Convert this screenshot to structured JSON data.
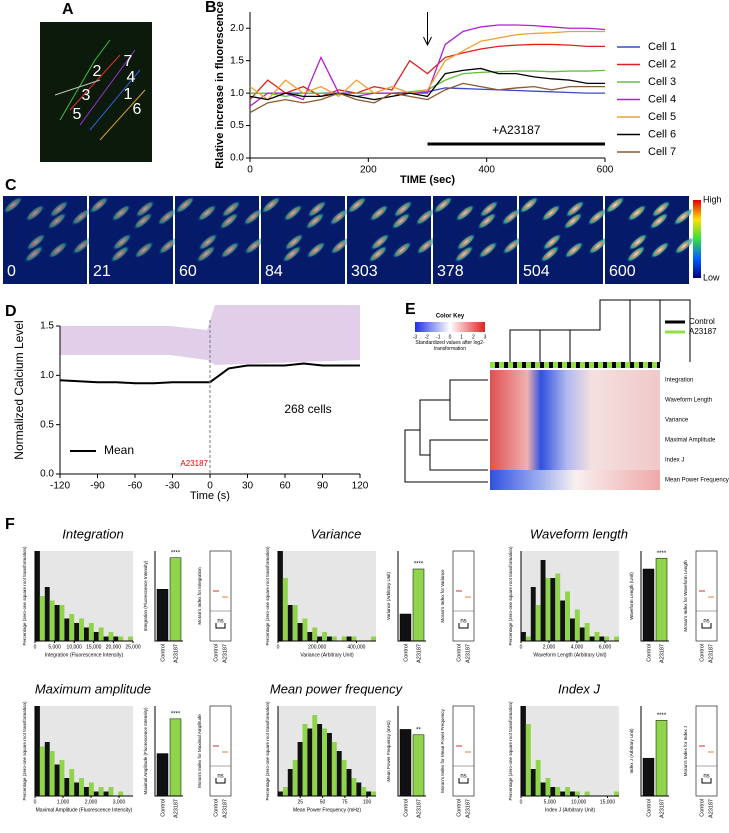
{
  "panel_labels": [
    "A",
    "B",
    "C",
    "D",
    "E",
    "F"
  ],
  "panel_a": {
    "cell_labels": [
      "2",
      "7",
      "3",
      "4",
      "1",
      "5",
      "6"
    ]
  },
  "panel_b": {
    "type": "line",
    "ylabel": "Rlative increase in fluorescence",
    "xlabel": "TIME (sec)",
    "x": [
      0,
      30,
      60,
      90,
      120,
      150,
      180,
      210,
      240,
      270,
      300,
      330,
      360,
      390,
      420,
      450,
      480,
      510,
      540,
      570,
      600
    ],
    "series": [
      {
        "name": "Cell 1",
        "color": "#3b4bc8",
        "values": [
          1.0,
          1.0,
          1.0,
          1.0,
          1.0,
          1.0,
          1.0,
          1.0,
          1.0,
          1.0,
          1.02,
          1.08,
          1.07,
          1.06,
          1.05,
          1.04,
          1.03,
          1.02,
          1.01,
          1.0,
          1.0
        ]
      },
      {
        "name": "Cell 2",
        "color": "#e02020",
        "values": [
          0.9,
          1.2,
          1.0,
          1.1,
          0.95,
          1.05,
          1.0,
          1.1,
          1.05,
          1.5,
          1.3,
          1.55,
          1.62,
          1.68,
          1.72,
          1.74,
          1.75,
          1.75,
          1.74,
          1.72,
          1.72
        ]
      },
      {
        "name": "Cell 3",
        "color": "#60c040",
        "values": [
          1.0,
          1.0,
          0.95,
          1.0,
          1.0,
          0.98,
          1.0,
          1.0,
          1.0,
          1.02,
          1.05,
          1.2,
          1.3,
          1.32,
          1.33,
          1.34,
          1.34,
          1.33,
          1.34,
          1.34,
          1.35
        ]
      },
      {
        "name": "Cell 4",
        "color": "#b020d0",
        "values": [
          0.8,
          1.0,
          1.0,
          0.9,
          1.55,
          1.0,
          0.95,
          1.0,
          1.0,
          1.0,
          1.0,
          1.75,
          1.95,
          2.02,
          2.05,
          2.05,
          2.04,
          2.02,
          2.0,
          2.0,
          1.98
        ]
      },
      {
        "name": "Cell 5",
        "color": "#f0a030",
        "values": [
          1.1,
          0.9,
          1.2,
          1.0,
          1.1,
          0.95,
          1.2,
          1.0,
          1.1,
          1.0,
          1.05,
          1.5,
          1.65,
          1.8,
          1.85,
          1.9,
          1.92,
          1.93,
          1.95,
          1.95,
          1.95
        ]
      },
      {
        "name": "Cell 6",
        "color": "#000000",
        "values": [
          0.95,
          0.9,
          1.0,
          0.95,
          0.95,
          1.0,
          0.95,
          0.9,
          0.95,
          1.0,
          0.95,
          1.3,
          1.35,
          1.38,
          1.3,
          1.3,
          1.25,
          1.22,
          1.2,
          1.15,
          1.15
        ]
      },
      {
        "name": "Cell 7",
        "color": "#8b5a2b",
        "values": [
          0.7,
          0.85,
          0.9,
          0.85,
          0.9,
          1.0,
          0.9,
          0.85,
          1.0,
          0.95,
          0.9,
          1.05,
          1.15,
          1.1,
          1.05,
          1.08,
          1.1,
          1.05,
          1.1,
          1.1,
          1.1
        ]
      }
    ],
    "xlim": [
      0,
      600
    ],
    "xticks": [
      0,
      200,
      400,
      600
    ],
    "ylim": [
      0,
      2.25
    ],
    "yticks": [
      {
        "value": 0,
        "label": "0.0"
      },
      {
        "value": 0.5,
        "label": "0.5"
      },
      {
        "value": 1,
        "label": "1.0"
      },
      {
        "value": 1.5,
        "label": "1.5"
      },
      {
        "value": 2,
        "label": "2.0"
      }
    ],
    "treatment": {
      "label": "+A23187",
      "start": 300,
      "end": 600
    }
  },
  "panel_c": {
    "times": [
      0,
      21,
      60,
      84,
      303,
      378,
      504,
      600
    ],
    "colorbar_high": "High",
    "colorbar_low": "Low"
  },
  "panel_d": {
    "type": "line",
    "ylabel": "Normalized Calcium Level",
    "xlabel": "Time (s)",
    "x": [
      -120,
      -105,
      -90,
      -75,
      -60,
      -45,
      -30,
      -15,
      0,
      15,
      30,
      45,
      60,
      75,
      90,
      105,
      120
    ],
    "series": [
      {
        "name": "Mean",
        "color": "#000000",
        "values": [
          0.95,
          0.94,
          0.93,
          0.93,
          0.92,
          0.92,
          0.93,
          0.93,
          0.93,
          1.07,
          1.1,
          1.1,
          1.1,
          1.12,
          1.1,
          1.1,
          1.1
        ]
      }
    ],
    "xlim": [
      -120,
      120
    ],
    "xticks": [
      -120,
      -90,
      -60,
      -30,
      0,
      30,
      60,
      90,
      120
    ],
    "ylim": [
      0,
      1.5
    ],
    "yticks": [
      {
        "value": 0,
        "label": "0.0"
      },
      {
        "value": 0.5,
        "label": "0.5"
      },
      {
        "value": 1,
        "label": "1.0"
      },
      {
        "value": 1.5,
        "label": "1.5"
      }
    ],
    "annotation": "268 cells",
    "treatment": {
      "label": "A23187",
      "x": 0
    }
  },
  "panel_e": {
    "color_key_title": "Color Key",
    "color_key_ticks": [
      -3,
      -2,
      -1,
      0,
      1,
      2,
      3
    ],
    "color_key_label": "Standardized values after log2-transformation",
    "legend": [
      {
        "name": "Control",
        "color": "#000000"
      },
      {
        "name": "A23187",
        "color": "#90e040"
      }
    ],
    "rows": [
      "Integration",
      "Waveform Length",
      "Variance",
      "Maximal Amplitude",
      "Index J",
      "Mean Power Frequency"
    ]
  },
  "panel_f": {
    "bar_categories": [
      "Control",
      "A23187"
    ],
    "hist_ylabel": "Percentage (zero-one square root transformation)",
    "hist_ylim": [
      0,
      20
    ],
    "panels": [
      {
        "title": "Integration",
        "xlabel": "Integration (Fluorescence Intensity)",
        "bar_ylabel": "Integration (Fluorescence Intensity)",
        "moran_ylabel": "Moran's Index for Integration",
        "bins": [
          0,
          2500,
          5000,
          7500,
          10000,
          12500,
          15000,
          17500,
          20000,
          22500,
          25000
        ],
        "control": [
          20,
          12,
          8,
          5,
          4,
          3,
          2,
          1,
          1,
          0
        ],
        "a23187": [
          10,
          9,
          8,
          6,
          5,
          4,
          3,
          2,
          1,
          1
        ],
        "xticks": [
          0,
          {
            "value": 5000,
            "label": "5,000"
          },
          {
            "value": 10000,
            "label": "10,000"
          },
          {
            "value": 15000,
            "label": "15,000"
          },
          {
            "value": 20000,
            "label": "20,000"
          },
          {
            "value": 25000,
            "label": "25,000"
          }
        ],
        "bar_ylim": [
          0,
          4000000
        ],
        "bar_values": [
          2300000,
          3700000
        ],
        "significance": "****",
        "moran_significance": "ns"
      },
      {
        "title": "Variance",
        "xlabel": "Variance (Arbitrary Unit)",
        "bar_ylabel": "Variance (Arbitrary Unit)",
        "moran_ylabel": "Moran's Index for Variance",
        "bins": [
          0,
          50000,
          100000,
          150000,
          200000,
          250000,
          300000,
          350000,
          400000,
          450000,
          500000
        ],
        "control": [
          20,
          8,
          4,
          2,
          1,
          1,
          0,
          1,
          0,
          0
        ],
        "a23187": [
          14,
          8,
          5,
          3,
          2,
          1,
          1,
          1,
          0,
          1
        ],
        "xticks": [
          0,
          {
            "value": 200000,
            "label": "200,000"
          },
          {
            "value": 400000,
            "label": "400,000"
          }
        ],
        "bar_ylim": [
          0,
          3000000
        ],
        "bar_values": [
          900000,
          2400000
        ],
        "significance": "****",
        "moran_significance": "ns"
      },
      {
        "title": "Waveform length",
        "xlabel": "Waveform Length (Arbitrary Unit)",
        "bar_ylabel": "Waveform Length (Unit)",
        "moran_ylabel": "Moran's Index for Waveform Length",
        "bins": [
          0,
          700,
          1400,
          2100,
          2800,
          3500,
          4200,
          4900,
          5600,
          6300,
          7000
        ],
        "control": [
          2,
          12,
          18,
          14,
          9,
          5,
          3,
          1,
          1,
          0
        ],
        "a23187": [
          1,
          8,
          14,
          15,
          11,
          7,
          4,
          2,
          1,
          1
        ],
        "xticks": [
          0,
          {
            "value": 2000,
            "label": "2,000"
          },
          {
            "value": 4000,
            "label": "4,000"
          },
          {
            "value": 6000,
            "label": "6,000"
          }
        ],
        "bar_ylim": [
          0,
          2500
        ],
        "bar_values": [
          2000,
          2300
        ],
        "significance": "****",
        "moran_significance": "ns"
      },
      {
        "title": "Maximum amplitude",
        "xlabel": "Maximal Amplitude (Fluorescence Intensity)",
        "bar_ylabel": "Maximal Amplitude (Fluorescence Intensity)",
        "moran_ylabel": "Moran's Index for Maximal Amplitude",
        "bins": [
          0,
          350,
          700,
          1050,
          1400,
          1750,
          2100,
          2450,
          2800,
          3150,
          3500
        ],
        "control": [
          20,
          12,
          7,
          4,
          3,
          2,
          1,
          1,
          0,
          0
        ],
        "a23187": [
          11,
          10,
          8,
          6,
          4,
          3,
          2,
          2,
          1,
          0
        ],
        "xticks": [
          0,
          {
            "value": 1000,
            "label": "1,000"
          },
          {
            "value": 2000,
            "label": "2,000"
          },
          {
            "value": 3000,
            "label": "3,000"
          }
        ],
        "bar_ylim": [
          0,
          700
        ],
        "bar_values": [
          330,
          600
        ],
        "significance": "****",
        "moran_significance": "ns"
      },
      {
        "title": "Mean power frequency",
        "xlabel": "Mean Power Frequency (mHz)",
        "bar_ylabel": "Mean Power Frequency (mHz)",
        "moran_ylabel": "Moran's Index for Mean Power Frequency",
        "bins": [
          0,
          11,
          22,
          33,
          44,
          55,
          66,
          77,
          88,
          99,
          110
        ],
        "control": [
          1,
          6,
          12,
          15,
          16,
          14,
          10,
          6,
          3,
          1
        ],
        "a23187": [
          2,
          8,
          16,
          18,
          15,
          12,
          8,
          4,
          2,
          1
        ],
        "xticks": [
          25,
          50,
          75,
          100
        ],
        "bar_ylim": [
          0,
          50
        ],
        "bar_values": [
          37,
          34
        ],
        "significance": "**",
        "moran_significance": "ns"
      },
      {
        "title": "Index J",
        "xlabel": "Index J (Arbitrary Unit)",
        "bar_ylabel": "Index J (Arbitrary Unit)",
        "moran_ylabel": "Moran's Index for Index J",
        "bins": [
          0,
          1700,
          3400,
          5100,
          6800,
          8500,
          10200,
          11900,
          13600,
          15300,
          17000
        ],
        "control": [
          20,
          6,
          3,
          2,
          1,
          1,
          0,
          0,
          0,
          0
        ],
        "a23187": [
          16,
          8,
          4,
          2,
          2,
          1,
          1,
          0,
          0,
          1
        ],
        "xticks": [
          0,
          {
            "value": 5000,
            "label": "5,000"
          },
          {
            "value": 10000,
            "label": "10,000"
          },
          {
            "value": 15000,
            "label": "15,000"
          }
        ],
        "bar_ylim": [
          0,
          10000
        ],
        "bar_values": [
          4200,
          8400
        ],
        "significance": "****",
        "moran_significance": "ns"
      }
    ]
  }
}
